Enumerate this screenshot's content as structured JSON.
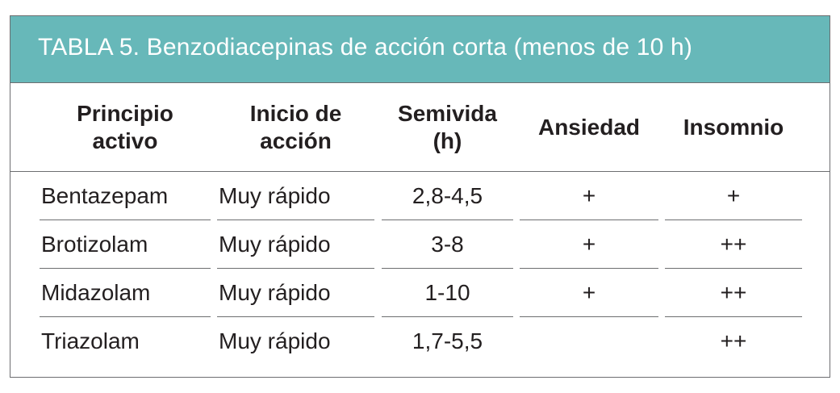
{
  "table": {
    "title": "TABLA 5. Benzodiacepinas de acción corta (menos de 10 h)",
    "headers": [
      {
        "line1": "Principio",
        "line2": "activo"
      },
      {
        "line1": "Inicio de",
        "line2": "acción"
      },
      {
        "line1": "Semivida",
        "line2": "(h)"
      },
      {
        "line1": "Ansiedad",
        "line2": ""
      },
      {
        "line1": "Insomnio",
        "line2": ""
      }
    ],
    "rows": [
      {
        "principio": "Bentazepam",
        "inicio": "Muy rápido",
        "semivida": "2,8-4,5",
        "ansiedad": "+",
        "insomnio": "+"
      },
      {
        "principio": "Brotizolam",
        "inicio": "Muy rápido",
        "semivida": "3-8",
        "ansiedad": "+",
        "insomnio": "++"
      },
      {
        "principio": "Midazolam",
        "inicio": "Muy rápido",
        "semivida": "1-10",
        "ansiedad": "+",
        "insomnio": "++"
      },
      {
        "principio": "Triazolam",
        "inicio": "Muy rápido",
        "semivida": "1,7-5,5",
        "ansiedad": "",
        "insomnio": "++"
      }
    ]
  },
  "colors": {
    "title_background": "#67b8b9",
    "title_text": "#ffffff",
    "rule": "#6d6e70",
    "text": "#231f20"
  }
}
